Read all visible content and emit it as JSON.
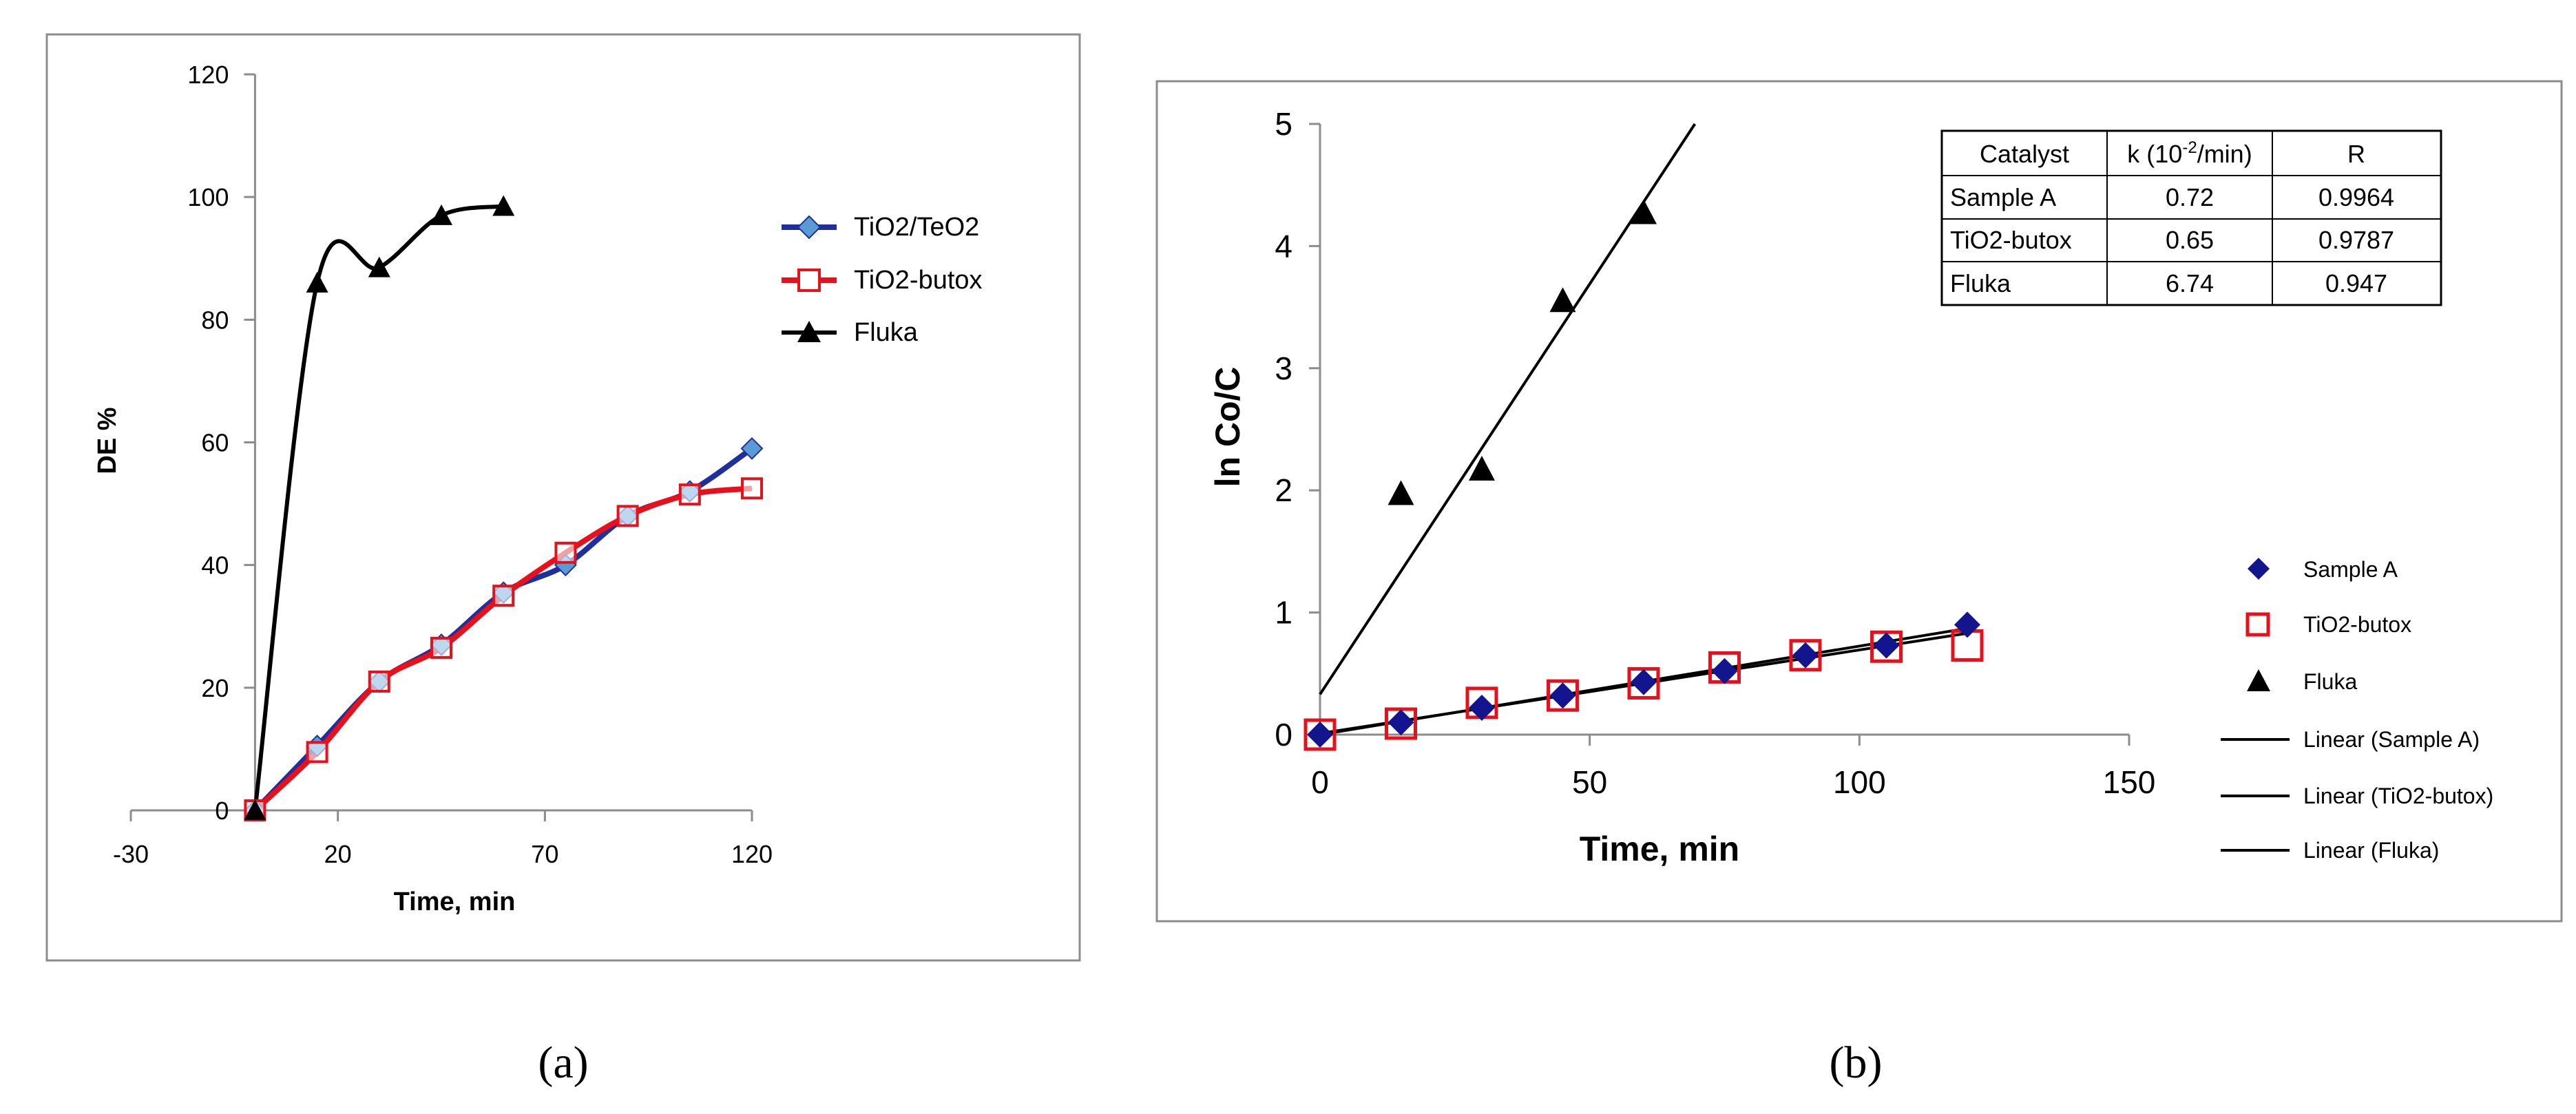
{
  "colors": {
    "blue": "#1f2f9c",
    "blue_marker": "#5b9bd5",
    "red": "#e8101a",
    "black": "#000000",
    "dark_blue": "#13158f"
  },
  "captions": {
    "a": "(a)",
    "b": "(b)"
  },
  "chart_data": [
    {
      "id": "a",
      "type": "line",
      "title": "",
      "xlabel": "Time, min",
      "ylabel": "DE %",
      "xlim": [
        -30,
        120
      ],
      "ylim": [
        0,
        120
      ],
      "xticks": [
        "-30",
        "20",
        "70",
        "120"
      ],
      "xtick_values": [
        -30,
        20,
        70,
        120
      ],
      "yticks": [
        "0",
        "20",
        "40",
        "60",
        "80",
        "100",
        "120"
      ],
      "ytick_values": [
        0,
        20,
        40,
        60,
        80,
        100,
        120
      ],
      "legend_position": "right",
      "series": [
        {
          "name": "TiO2/TeO2",
          "x": [
            0,
            15,
            30,
            45,
            60,
            75,
            90,
            105,
            120
          ],
          "y": [
            0,
            10.5,
            21,
            27,
            35.5,
            40,
            48,
            52,
            59
          ]
        },
        {
          "name": "TiO2-butox",
          "x": [
            0,
            15,
            30,
            45,
            60,
            75,
            90,
            105,
            120
          ],
          "y": [
            0,
            9.5,
            21,
            26.5,
            35,
            42,
            48,
            51.5,
            52.5
          ]
        },
        {
          "name": "Fluka",
          "x": [
            0,
            15,
            30,
            45,
            60
          ],
          "y": [
            0,
            86,
            88.5,
            97,
            98.5
          ]
        }
      ]
    },
    {
      "id": "b",
      "type": "scatter",
      "title": "",
      "xlabel": "Time, min",
      "ylabel": "ln Co/C",
      "xlim": [
        0,
        150
      ],
      "ylim": [
        0,
        5
      ],
      "xticks": [
        "0",
        "50",
        "100",
        "150"
      ],
      "xtick_values": [
        0,
        50,
        100,
        150
      ],
      "yticks": [
        "0",
        "1",
        "2",
        "3",
        "4",
        "5"
      ],
      "ytick_values": [
        0,
        1,
        2,
        3,
        4,
        5
      ],
      "legend_position": "right",
      "series": [
        {
          "name": "Sample A",
          "x": [
            0,
            15,
            30,
            45,
            60,
            75,
            90,
            105,
            120
          ],
          "y": [
            0,
            0.1,
            0.22,
            0.32,
            0.43,
            0.52,
            0.65,
            0.73,
            0.9
          ]
        },
        {
          "name": "TiO2-butox",
          "x": [
            0,
            15,
            30,
            45,
            60,
            75,
            90,
            105,
            120
          ],
          "y": [
            0,
            0.09,
            0.26,
            0.32,
            0.42,
            0.55,
            0.65,
            0.72,
            0.73
          ]
        },
        {
          "name": "Fluka",
          "x": [
            15,
            30,
            45,
            60
          ],
          "y": [
            1.97,
            2.17,
            3.55,
            4.27
          ]
        }
      ],
      "trendlines": [
        {
          "name": "Linear (Sample A)",
          "x": [
            0,
            120
          ],
          "y": [
            0,
            0.87
          ]
        },
        {
          "name": "Linear (TiO2-butox)",
          "x": [
            0,
            120
          ],
          "y": [
            0.01,
            0.83
          ]
        },
        {
          "name": "Linear (Fluka)",
          "x": [
            0,
            69.5
          ],
          "y": [
            0.33,
            5
          ]
        }
      ],
      "table": {
        "headers": [
          "Catalyst",
          "k (10",
          "-2",
          "/min)",
          "R"
        ],
        "rows": [
          [
            "Sample A",
            "0.72",
            "0.9964"
          ],
          [
            "TiO2-butox",
            "0.65",
            "0.9787"
          ],
          [
            "Fluka",
            "6.74",
            "0.947"
          ]
        ]
      }
    }
  ]
}
